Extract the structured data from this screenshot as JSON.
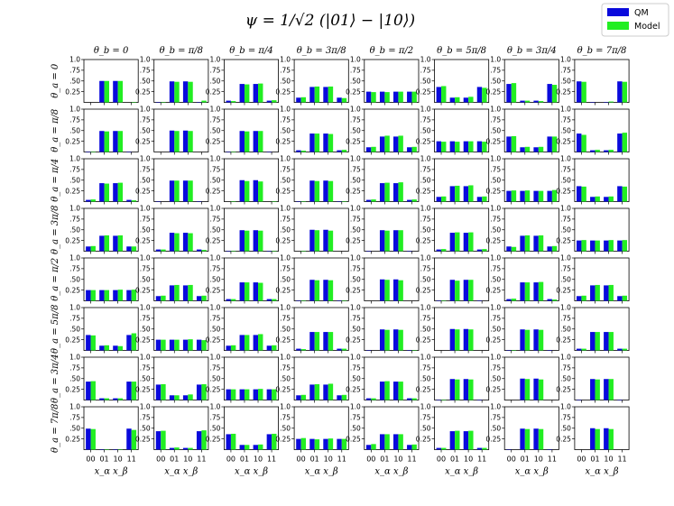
{
  "chart_data": {
    "type": "bar",
    "title": "ψ = 1/√2 (|01⟩ − |10⟩)",
    "layout": "8x8 grid of small bar charts",
    "xlabel": "x_α x_β",
    "categories": [
      "00",
      "01",
      "10",
      "11"
    ],
    "col_labels": [
      "θ_b = 0",
      "θ_b = π/8",
      "θ_b = π/4",
      "θ_b = 3π/8",
      "θ_b = π/2",
      "θ_b = 5π/8",
      "θ_b = 3π/4",
      "θ_b = 7π/8"
    ],
    "row_labels": [
      "θ_a = 0",
      "θ_a = π/8",
      "θ_a = π/4",
      "θ_a = 3π/8",
      "θ_a = π/2",
      "θ_a = 5π/8",
      "θ_a = 3π/4",
      "θ_a = 7π/8"
    ],
    "yticks": [
      "0.25",
      ".50",
      ".75",
      "1.0"
    ],
    "ylim": [
      0,
      1
    ],
    "legend": {
      "position": "top-right",
      "entries": [
        "QM",
        "Model"
      ]
    },
    "colors": {
      "QM": "#0a0adc",
      "Model": "#22ee22"
    },
    "series_definition": "QM and Model probability per outcome; subplot values given as [QM00, QM01, QM10, QM11]; model values approximately equal to QM",
    "qm_values": [
      [
        [
          0.0,
          0.5,
          0.5,
          0.0
        ],
        [
          0.01,
          0.49,
          0.49,
          0.01
        ],
        [
          0.04,
          0.43,
          0.43,
          0.04
        ],
        [
          0.11,
          0.36,
          0.36,
          0.11
        ],
        [
          0.25,
          0.25,
          0.25,
          0.25
        ],
        [
          0.36,
          0.11,
          0.11,
          0.36
        ],
        [
          0.43,
          0.04,
          0.04,
          0.43
        ],
        [
          0.49,
          0.01,
          0.01,
          0.49
        ]
      ],
      [
        [
          0.01,
          0.49,
          0.49,
          0.01
        ],
        [
          0.0,
          0.5,
          0.5,
          0.0
        ],
        [
          0.01,
          0.49,
          0.49,
          0.01
        ],
        [
          0.04,
          0.43,
          0.43,
          0.04
        ],
        [
          0.11,
          0.36,
          0.36,
          0.11
        ],
        [
          0.25,
          0.25,
          0.25,
          0.25
        ],
        [
          0.36,
          0.11,
          0.11,
          0.36
        ],
        [
          0.43,
          0.04,
          0.04,
          0.43
        ]
      ],
      [
        [
          0.04,
          0.43,
          0.43,
          0.04
        ],
        [
          0.01,
          0.49,
          0.49,
          0.01
        ],
        [
          0.0,
          0.5,
          0.5,
          0.0
        ],
        [
          0.01,
          0.49,
          0.49,
          0.01
        ],
        [
          0.04,
          0.43,
          0.43,
          0.04
        ],
        [
          0.11,
          0.36,
          0.36,
          0.11
        ],
        [
          0.25,
          0.25,
          0.25,
          0.25
        ],
        [
          0.36,
          0.11,
          0.11,
          0.36
        ]
      ],
      [
        [
          0.11,
          0.36,
          0.36,
          0.11
        ],
        [
          0.04,
          0.43,
          0.43,
          0.04
        ],
        [
          0.01,
          0.49,
          0.49,
          0.01
        ],
        [
          0.0,
          0.5,
          0.5,
          0.0
        ],
        [
          0.01,
          0.49,
          0.49,
          0.01
        ],
        [
          0.04,
          0.43,
          0.43,
          0.04
        ],
        [
          0.11,
          0.36,
          0.36,
          0.11
        ],
        [
          0.25,
          0.25,
          0.25,
          0.25
        ]
      ],
      [
        [
          0.25,
          0.25,
          0.25,
          0.25
        ],
        [
          0.11,
          0.36,
          0.36,
          0.11
        ],
        [
          0.04,
          0.43,
          0.43,
          0.04
        ],
        [
          0.01,
          0.49,
          0.49,
          0.01
        ],
        [
          0.0,
          0.5,
          0.5,
          0.0
        ],
        [
          0.01,
          0.49,
          0.49,
          0.01
        ],
        [
          0.04,
          0.43,
          0.43,
          0.04
        ],
        [
          0.11,
          0.36,
          0.36,
          0.11
        ]
      ],
      [
        [
          0.36,
          0.11,
          0.11,
          0.36
        ],
        [
          0.25,
          0.25,
          0.25,
          0.25
        ],
        [
          0.11,
          0.36,
          0.36,
          0.11
        ],
        [
          0.04,
          0.43,
          0.43,
          0.04
        ],
        [
          0.01,
          0.49,
          0.49,
          0.01
        ],
        [
          0.0,
          0.5,
          0.5,
          0.0
        ],
        [
          0.01,
          0.49,
          0.49,
          0.01
        ],
        [
          0.04,
          0.43,
          0.43,
          0.04
        ]
      ],
      [
        [
          0.43,
          0.04,
          0.04,
          0.43
        ],
        [
          0.36,
          0.11,
          0.11,
          0.36
        ],
        [
          0.25,
          0.25,
          0.25,
          0.25
        ],
        [
          0.11,
          0.36,
          0.36,
          0.11
        ],
        [
          0.04,
          0.43,
          0.43,
          0.04
        ],
        [
          0.01,
          0.49,
          0.49,
          0.01
        ],
        [
          0.0,
          0.5,
          0.5,
          0.0
        ],
        [
          0.01,
          0.49,
          0.49,
          0.01
        ]
      ],
      [
        [
          0.49,
          0.01,
          0.01,
          0.49
        ],
        [
          0.43,
          0.04,
          0.04,
          0.43
        ],
        [
          0.36,
          0.11,
          0.11,
          0.36
        ],
        [
          0.25,
          0.25,
          0.25,
          0.25
        ],
        [
          0.11,
          0.36,
          0.36,
          0.11
        ],
        [
          0.04,
          0.43,
          0.43,
          0.04
        ],
        [
          0.01,
          0.49,
          0.49,
          0.01
        ],
        [
          0.0,
          0.5,
          0.5,
          0.0
        ]
      ]
    ],
    "model_values": [
      [
        [
          0.0,
          0.5,
          0.5,
          0.01
        ],
        [
          0.01,
          0.48,
          0.48,
          0.04
        ],
        [
          0.03,
          0.42,
          0.44,
          0.05
        ],
        [
          0.12,
          0.37,
          0.37,
          0.1
        ],
        [
          0.24,
          0.24,
          0.25,
          0.25
        ],
        [
          0.38,
          0.12,
          0.13,
          0.34
        ],
        [
          0.45,
          0.04,
          0.03,
          0.41
        ],
        [
          0.48,
          0.0,
          0.02,
          0.48
        ]
      ],
      [
        [
          0.01,
          0.48,
          0.49,
          0.0
        ],
        [
          0.0,
          0.49,
          0.49,
          0.0
        ],
        [
          0.01,
          0.48,
          0.49,
          0.0
        ],
        [
          0.03,
          0.43,
          0.42,
          0.05
        ],
        [
          0.12,
          0.38,
          0.38,
          0.12
        ],
        [
          0.24,
          0.24,
          0.25,
          0.24
        ],
        [
          0.37,
          0.12,
          0.12,
          0.36
        ],
        [
          0.4,
          0.05,
          0.05,
          0.45
        ]
      ],
      [
        [
          0.05,
          0.42,
          0.44,
          0.03
        ],
        [
          0.0,
          0.49,
          0.49,
          0.0
        ],
        [
          0.01,
          0.48,
          0.47,
          0.01
        ],
        [
          0.01,
          0.48,
          0.48,
          0.01
        ],
        [
          0.05,
          0.44,
          0.45,
          0.05
        ],
        [
          0.12,
          0.37,
          0.38,
          0.12
        ],
        [
          0.26,
          0.26,
          0.25,
          0.27
        ],
        [
          0.35,
          0.12,
          0.12,
          0.35
        ]
      ],
      [
        [
          0.12,
          0.37,
          0.37,
          0.11
        ],
        [
          0.04,
          0.42,
          0.42,
          0.03
        ],
        [
          0.01,
          0.48,
          0.48,
          0.01
        ],
        [
          0.01,
          0.49,
          0.48,
          0.0
        ],
        [
          0.0,
          0.48,
          0.49,
          0.0
        ],
        [
          0.05,
          0.44,
          0.44,
          0.05
        ],
        [
          0.1,
          0.37,
          0.37,
          0.12
        ],
        [
          0.26,
          0.25,
          0.26,
          0.26
        ]
      ],
      [
        [
          0.25,
          0.25,
          0.26,
          0.26
        ],
        [
          0.12,
          0.37,
          0.37,
          0.12
        ],
        [
          0.04,
          0.43,
          0.42,
          0.04
        ],
        [
          0.01,
          0.48,
          0.48,
          0.01
        ],
        [
          0.0,
          0.49,
          0.48,
          0.0
        ],
        [
          0.01,
          0.47,
          0.49,
          0.0
        ],
        [
          0.05,
          0.43,
          0.44,
          0.03
        ],
        [
          0.12,
          0.37,
          0.37,
          0.12
        ]
      ],
      [
        [
          0.35,
          0.12,
          0.1,
          0.4
        ],
        [
          0.25,
          0.25,
          0.26,
          0.24
        ],
        [
          0.12,
          0.36,
          0.38,
          0.12
        ],
        [
          0.03,
          0.43,
          0.43,
          0.04
        ],
        [
          0.0,
          0.48,
          0.48,
          0.01
        ],
        [
          0.0,
          0.49,
          0.49,
          0.0
        ],
        [
          0.01,
          0.48,
          0.48,
          0.0
        ],
        [
          0.04,
          0.43,
          0.43,
          0.04
        ]
      ],
      [
        [
          0.44,
          0.04,
          0.04,
          0.43
        ],
        [
          0.37,
          0.11,
          0.13,
          0.37
        ],
        [
          0.25,
          0.25,
          0.26,
          0.25
        ],
        [
          0.12,
          0.37,
          0.38,
          0.12
        ],
        [
          0.04,
          0.44,
          0.43,
          0.04
        ],
        [
          0.01,
          0.48,
          0.48,
          0.0
        ],
        [
          0.0,
          0.49,
          0.48,
          0.0
        ],
        [
          0.0,
          0.48,
          0.49,
          0.0
        ]
      ],
      [
        [
          0.48,
          0.01,
          0.01,
          0.46
        ],
        [
          0.44,
          0.05,
          0.04,
          0.45
        ],
        [
          0.37,
          0.11,
          0.12,
          0.37
        ],
        [
          0.27,
          0.24,
          0.26,
          0.25
        ],
        [
          0.13,
          0.36,
          0.36,
          0.12
        ],
        [
          0.04,
          0.44,
          0.44,
          0.04
        ],
        [
          0.0,
          0.48,
          0.48,
          0.0
        ],
        [
          0.0,
          0.48,
          0.48,
          0.0
        ]
      ]
    ]
  }
}
